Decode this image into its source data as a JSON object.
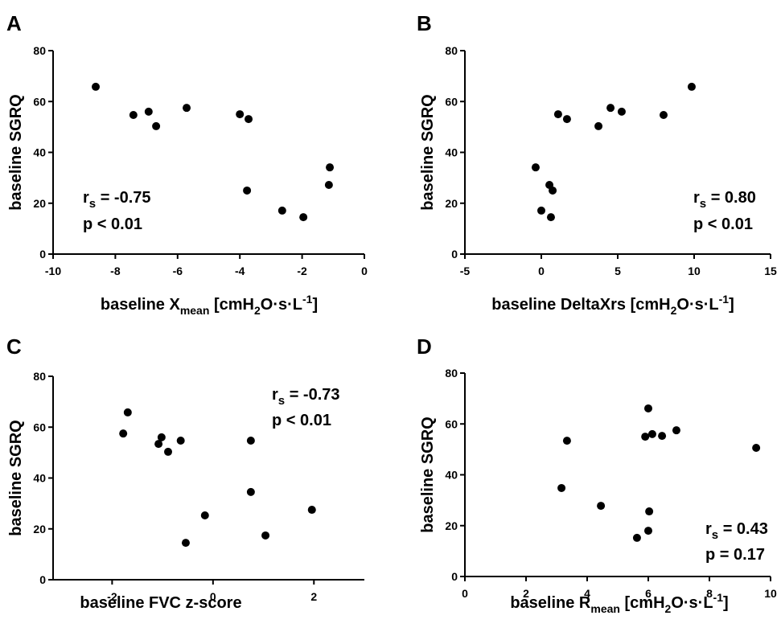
{
  "chart_data": [
    {
      "type": "scatter",
      "panel": "A",
      "y_label": "baseline SGRQ",
      "x_label": [
        "baseline X",
        "mean",
        " [cmH",
        "2",
        "O·s·L",
        "-1",
        "]"
      ],
      "annotation": {
        "stat": [
          "r",
          "s",
          " = -0.75"
        ],
        "p": "p < 0.01"
      },
      "color": "#000000",
      "x": [
        -8.63,
        -7.42,
        -6.93,
        -6.69,
        -5.71,
        -4.0,
        -3.72,
        -3.77,
        -2.64,
        -1.96,
        -1.11,
        -1.14
      ],
      "y": [
        65.8,
        54.7,
        56.0,
        50.3,
        57.5,
        55.0,
        53.1,
        25.0,
        17.1,
        14.5,
        34.1,
        27.2
      ],
      "xlim": [
        -10,
        0
      ],
      "xticks": [
        -10,
        -8,
        -6,
        -4,
        -2,
        0
      ],
      "ylim": [
        0,
        80
      ],
      "yticks": [
        0,
        20,
        40,
        60,
        80
      ]
    },
    {
      "type": "scatter",
      "panel": "B",
      "y_label": "baseline SGRQ",
      "x_label": [
        "baseline DeltaXrs [cmH",
        "2",
        "O·s·L",
        "-1",
        "]"
      ],
      "annotation": {
        "stat": [
          "r",
          "s",
          " = 0.80"
        ],
        "p": "p < 0.01"
      },
      "color": "#000000",
      "x": [
        9.84,
        8.0,
        5.26,
        3.74,
        4.53,
        1.1,
        1.68,
        0.74,
        0.0,
        0.63,
        -0.37,
        0.53
      ],
      "y": [
        65.8,
        54.7,
        56.0,
        50.3,
        57.5,
        55.0,
        53.1,
        25.0,
        17.1,
        14.5,
        34.1,
        27.2
      ],
      "xlim": [
        -5,
        15
      ],
      "xticks": [
        -5,
        0,
        5,
        10,
        15
      ],
      "ylim": [
        0,
        80
      ],
      "yticks": [
        0,
        20,
        40,
        60,
        80
      ]
    },
    {
      "type": "scatter",
      "panel": "C",
      "y_label": "baseline SGRQ",
      "x_label": [
        "baseline FVC z-score"
      ],
      "annotation": {
        "stat": [
          "r",
          "s",
          " = -0.73"
        ],
        "p": "p < 0.01"
      },
      "color": "#000000",
      "x": [
        -1.69,
        -1.78,
        -1.02,
        -1.08,
        -0.89,
        -0.64,
        0.75,
        0.75,
        -0.16,
        1.04,
        -0.54,
        1.96
      ],
      "y": [
        65.8,
        57.5,
        56.0,
        53.4,
        50.3,
        54.7,
        54.7,
        34.5,
        25.3,
        17.4,
        14.5,
        27.5
      ],
      "xlim": [
        -3.17,
        3
      ],
      "xticks": [
        -2,
        0,
        2
      ],
      "ylim": [
        0,
        80
      ],
      "yticks": [
        0,
        20,
        40,
        60,
        80
      ]
    },
    {
      "type": "scatter",
      "panel": "D",
      "y_label": "baseline SGRQ",
      "x_label": [
        "baseline R",
        "mean",
        " [cmH",
        "2",
        "O·s·L",
        "-1",
        "]"
      ],
      "annotation": {
        "stat": [
          "r",
          "s",
          " = 0.43"
        ],
        "p": "p = 0.17"
      },
      "color": "#000000",
      "x": [
        6.0,
        3.34,
        5.9,
        6.13,
        6.45,
        6.92,
        9.53,
        3.16,
        4.45,
        6.03,
        6.0,
        5.63
      ],
      "y": [
        66.1,
        53.4,
        55.0,
        56.0,
        55.3,
        57.5,
        50.6,
        34.8,
        27.8,
        25.6,
        18.0,
        15.2
      ],
      "xlim": [
        0,
        10
      ],
      "xticks": [
        0,
        2,
        4,
        6,
        8,
        10
      ],
      "ylim": [
        0,
        80
      ],
      "yticks": [
        0,
        20,
        40,
        60,
        80
      ]
    }
  ]
}
